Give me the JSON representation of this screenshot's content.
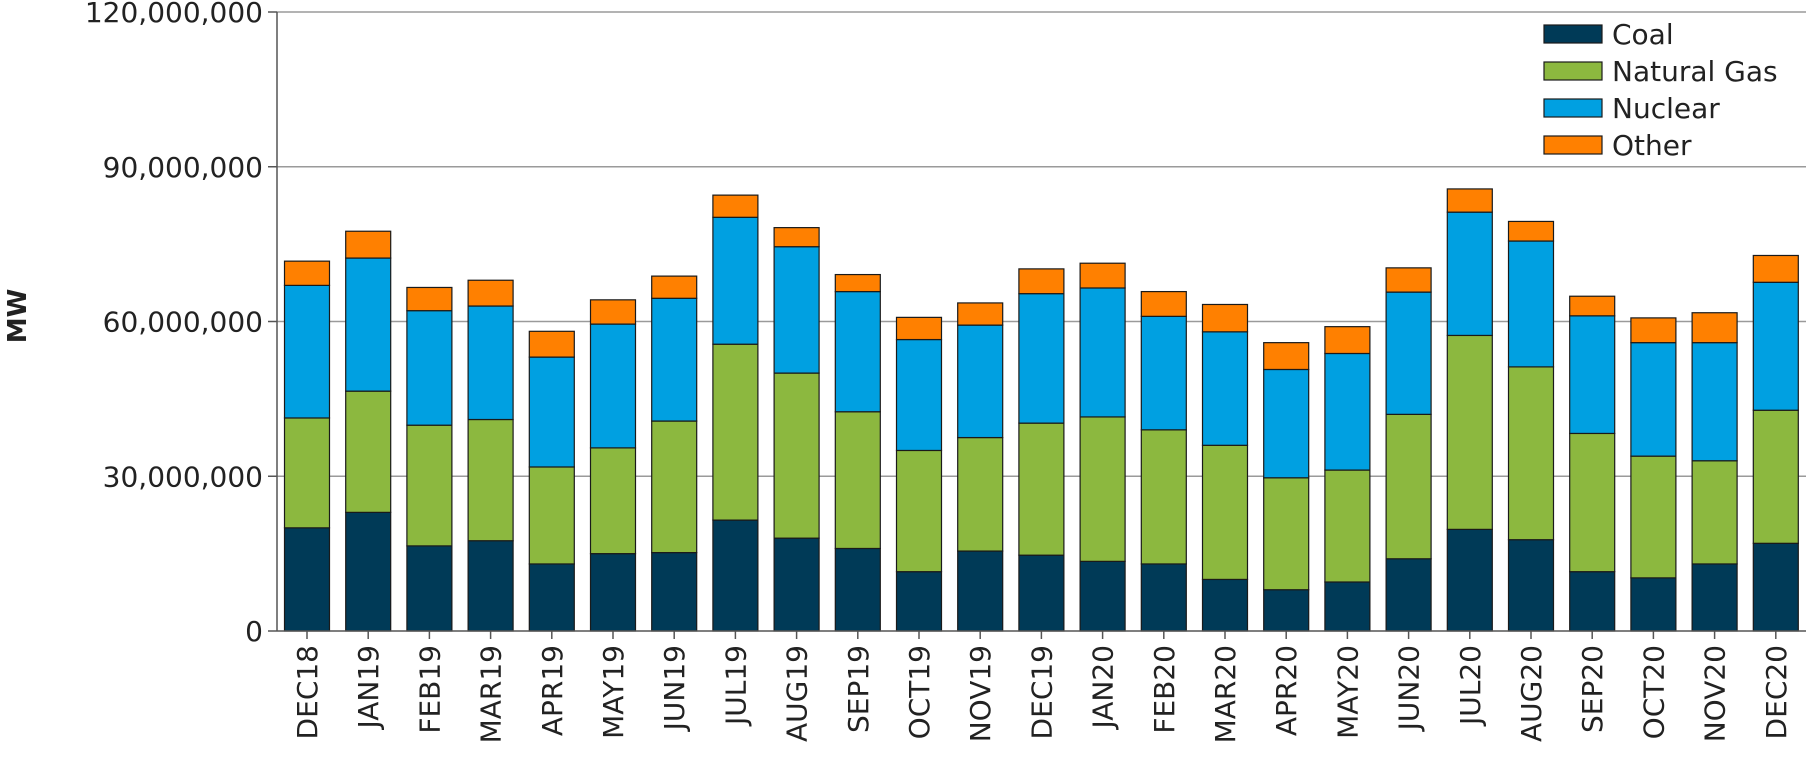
{
  "chart_data": {
    "type": "bar",
    "stacked": true,
    "title": "",
    "xlabel": "",
    "ylabel": "MW",
    "ylim": [
      0,
      120000000
    ],
    "yticks": [
      0,
      30000000,
      60000000,
      90000000,
      120000000
    ],
    "ytick_labels": [
      "0",
      "30,000,000",
      "60,000,000",
      "90,000,000",
      "120,000,000"
    ],
    "grid": true,
    "legend_position": "top-right",
    "categories": [
      "DEC18",
      "JAN19",
      "FEB19",
      "MAR19",
      "APR19",
      "MAY19",
      "JUN19",
      "JUL19",
      "AUG19",
      "SEP19",
      "OCT19",
      "NOV19",
      "DEC19",
      "JAN20",
      "FEB20",
      "MAR20",
      "APR20",
      "MAY20",
      "JUN20",
      "JUL20",
      "AUG20",
      "SEP20",
      "OCT20",
      "NOV20",
      "DEC20"
    ],
    "series": [
      {
        "name": "Coal",
        "color": "#003a57",
        "values": [
          20000000,
          23000000,
          16500000,
          17500000,
          13000000,
          15000000,
          15200000,
          21500000,
          18000000,
          16000000,
          11500000,
          15500000,
          14700000,
          13500000,
          13000000,
          10000000,
          8000000,
          9500000,
          14000000,
          19700000,
          17700000,
          11500000,
          10300000,
          13000000,
          17000000
        ]
      },
      {
        "name": "Natural Gas",
        "color": "#8cb83f",
        "values": [
          21300000,
          23500000,
          23400000,
          23500000,
          18800000,
          20500000,
          25500000,
          34100000,
          32000000,
          26500000,
          23500000,
          22000000,
          25600000,
          28000000,
          26000000,
          26000000,
          21700000,
          21700000,
          28000000,
          37600000,
          33500000,
          26800000,
          23600000,
          20000000,
          25800000
        ]
      },
      {
        "name": "Nuclear",
        "color": "#00a0e1",
        "values": [
          25700000,
          25800000,
          22200000,
          22000000,
          21300000,
          24000000,
          23800000,
          24600000,
          24500000,
          23300000,
          21500000,
          21800000,
          25100000,
          25000000,
          22000000,
          22000000,
          21000000,
          22600000,
          23700000,
          23900000,
          24400000,
          22800000,
          22000000,
          22900000,
          24800000
        ]
      },
      {
        "name": "Other",
        "color": "#ff8000",
        "values": [
          4700000,
          5200000,
          4500000,
          5000000,
          5000000,
          4700000,
          4300000,
          4300000,
          3700000,
          3300000,
          4300000,
          4300000,
          4800000,
          4800000,
          4800000,
          5300000,
          5200000,
          5200000,
          4700000,
          4500000,
          3800000,
          3800000,
          4800000,
          5800000,
          5200000
        ]
      }
    ]
  }
}
